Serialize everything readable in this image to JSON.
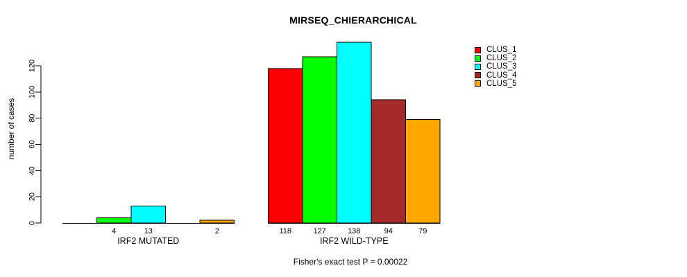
{
  "chart_data": {
    "type": "bar",
    "title": "MIRSEQ_CHIERARCHICAL",
    "ylabel": "number of cases",
    "xlabel": "",
    "ylim": [
      0,
      138
    ],
    "yticks": [
      0,
      20,
      40,
      60,
      80,
      100,
      120
    ],
    "grid": false,
    "legend_position": "right",
    "categories": [
      "IRF2 MUTATED",
      "IRF2 WILD-TYPE"
    ],
    "series": [
      {
        "name": "CLUS_1",
        "color": "#ff0000",
        "values": [
          0,
          118
        ]
      },
      {
        "name": "CLUS_2",
        "color": "#00ff00",
        "values": [
          4,
          127
        ]
      },
      {
        "name": "CLUS_3",
        "color": "#00ffff",
        "values": [
          13,
          138
        ]
      },
      {
        "name": "CLUS_4",
        "color": "#a52a2a",
        "values": [
          0,
          94
        ]
      },
      {
        "name": "CLUS_5",
        "color": "#ffa500",
        "values": [
          2,
          79
        ]
      }
    ],
    "bar_value_labels": [
      [
        "",
        "4",
        "13",
        "",
        "2"
      ],
      [
        "118",
        "127",
        "138",
        "94",
        "79"
      ]
    ],
    "note": "Fisher's exact test P = 0.00022"
  }
}
